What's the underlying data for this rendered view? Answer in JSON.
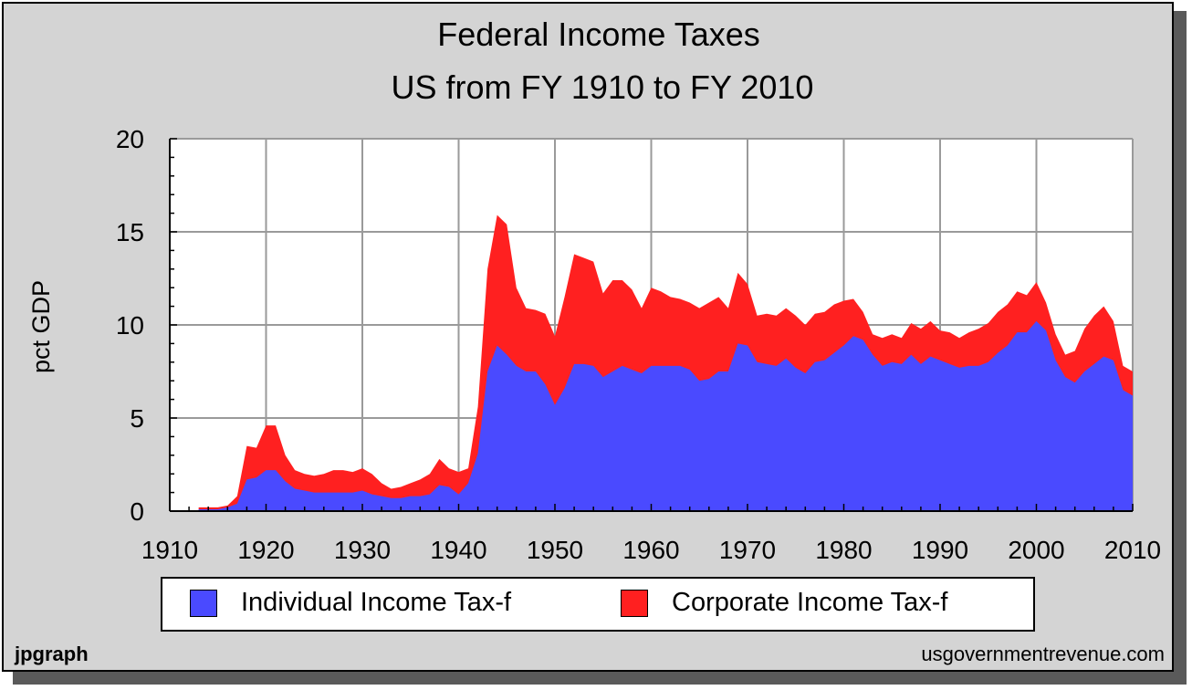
{
  "chart_data": {
    "type": "area",
    "stacked": true,
    "title": "Federal Income Taxes",
    "subtitle": "US from FY 1910 to FY 2010",
    "xlabel": "",
    "ylabel": "pct GDP",
    "xlim": [
      1910,
      2010
    ],
    "ylim": [
      0,
      20
    ],
    "x_ticks": [
      "1910",
      "1920",
      "1930",
      "1940",
      "1950",
      "1960",
      "1970",
      "1980",
      "1990",
      "2000",
      "2010"
    ],
    "y_ticks": [
      "0",
      "5",
      "10",
      "15",
      "20"
    ],
    "grid": true,
    "legend_position": "bottom",
    "x": [
      1913,
      1914,
      1915,
      1916,
      1917,
      1918,
      1919,
      1920,
      1921,
      1922,
      1923,
      1924,
      1925,
      1926,
      1927,
      1928,
      1929,
      1930,
      1931,
      1932,
      1933,
      1934,
      1935,
      1936,
      1937,
      1938,
      1939,
      1940,
      1941,
      1942,
      1943,
      1944,
      1945,
      1946,
      1947,
      1948,
      1949,
      1950,
      1951,
      1952,
      1953,
      1954,
      1955,
      1956,
      1957,
      1958,
      1959,
      1960,
      1961,
      1962,
      1963,
      1964,
      1965,
      1966,
      1967,
      1968,
      1969,
      1970,
      1971,
      1972,
      1973,
      1974,
      1975,
      1976,
      1977,
      1978,
      1979,
      1980,
      1981,
      1982,
      1983,
      1984,
      1985,
      1986,
      1987,
      1988,
      1989,
      1990,
      1991,
      1992,
      1993,
      1994,
      1995,
      1996,
      1997,
      1998,
      1999,
      2000,
      2001,
      2002,
      2003,
      2004,
      2005,
      2006,
      2007,
      2008,
      2009,
      2010
    ],
    "series": [
      {
        "name": "Individual Income Tax-f",
        "color": "#4a4aff",
        "values": [
          0.1,
          0.1,
          0.1,
          0.2,
          0.4,
          1.7,
          1.8,
          2.2,
          2.2,
          1.6,
          1.2,
          1.1,
          1.0,
          1.0,
          1.0,
          1.0,
          1.0,
          1.1,
          0.9,
          0.8,
          0.7,
          0.7,
          0.8,
          0.8,
          0.9,
          1.4,
          1.3,
          0.9,
          1.5,
          3.1,
          7.5,
          8.9,
          8.4,
          7.8,
          7.5,
          7.5,
          6.8,
          5.7,
          6.6,
          7.9,
          7.9,
          7.8,
          7.2,
          7.5,
          7.8,
          7.6,
          7.4,
          7.8,
          7.8,
          7.8,
          7.8,
          7.6,
          7.0,
          7.1,
          7.5,
          7.5,
          9.0,
          8.9,
          8.0,
          7.9,
          7.8,
          8.2,
          7.7,
          7.4,
          8.0,
          8.1,
          8.5,
          8.9,
          9.4,
          9.2,
          8.4,
          7.8,
          8.0,
          7.9,
          8.4,
          7.9,
          8.3,
          8.1,
          7.9,
          7.7,
          7.8,
          7.8,
          8.0,
          8.5,
          8.9,
          9.6,
          9.6,
          10.2,
          9.7,
          8.1,
          7.2,
          6.9,
          7.5,
          7.9,
          8.3,
          8.1,
          6.5,
          6.2
        ]
      },
      {
        "name": "Corporate Income Tax-f",
        "color": "#ff2020",
        "values": [
          0.1,
          0.1,
          0.1,
          0.1,
          0.4,
          1.8,
          1.6,
          2.4,
          2.4,
          1.4,
          1.0,
          0.9,
          0.9,
          1.0,
          1.2,
          1.2,
          1.1,
          1.2,
          1.1,
          0.7,
          0.5,
          0.6,
          0.7,
          0.9,
          1.1,
          1.4,
          1.0,
          1.2,
          0.8,
          2.5,
          5.5,
          7.0,
          7.0,
          4.2,
          3.4,
          3.3,
          3.8,
          3.7,
          4.9,
          5.9,
          5.7,
          5.6,
          4.5,
          4.9,
          4.6,
          4.3,
          3.5,
          4.2,
          4.0,
          3.7,
          3.6,
          3.6,
          3.9,
          4.1,
          4.0,
          3.4,
          3.8,
          3.3,
          2.5,
          2.7,
          2.7,
          2.7,
          2.8,
          2.6,
          2.6,
          2.6,
          2.6,
          2.4,
          2.0,
          1.5,
          1.1,
          1.5,
          1.5,
          1.4,
          1.7,
          1.9,
          1.9,
          1.6,
          1.7,
          1.6,
          1.8,
          2.0,
          2.1,
          2.2,
          2.2,
          2.2,
          2.0,
          2.1,
          1.5,
          1.4,
          1.2,
          1.7,
          2.3,
          2.6,
          2.7,
          2.1,
          1.3,
          1.3
        ]
      }
    ]
  },
  "footer": {
    "left": "jpgraph",
    "right": "usgovernmentrevenue.com"
  }
}
